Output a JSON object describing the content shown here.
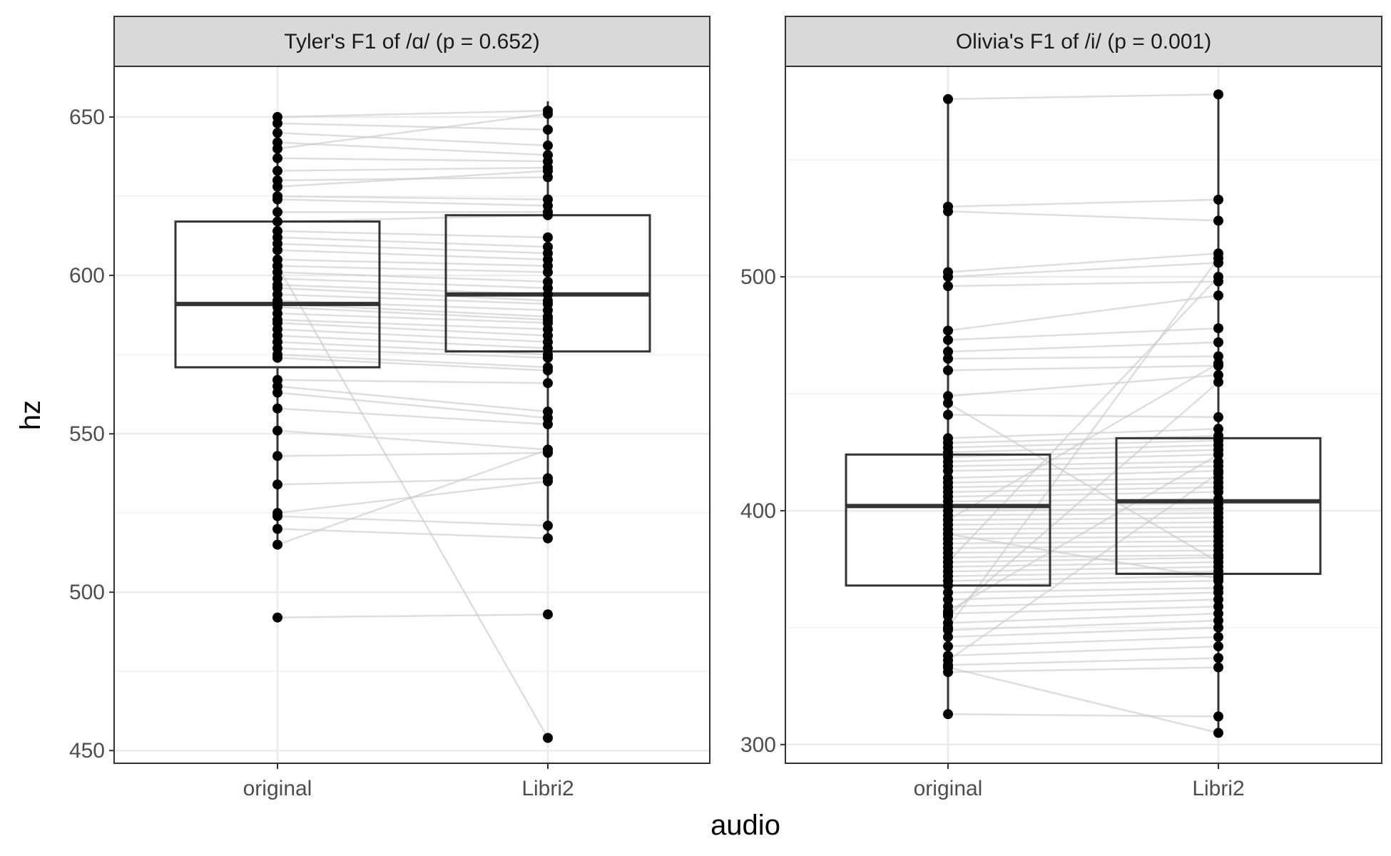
{
  "chart_data": [
    {
      "type": "boxplot-paired",
      "title": "Tyler's F1 of /ɑ/ (p = 0.652)",
      "xlabel": "audio",
      "ylabel": "hz",
      "categories": [
        "original",
        "Libri2"
      ],
      "ylim": [
        446,
        666
      ],
      "yticks": [
        450,
        500,
        550,
        600,
        650
      ],
      "grid": true,
      "boxes": [
        {
          "category": "original",
          "min": 515,
          "q1": 571,
          "median": 591,
          "q3": 617,
          "max": 650
        },
        {
          "category": "Libri2",
          "min": 517,
          "q1": 576,
          "median": 594,
          "q3": 619,
          "max": 655
        }
      ],
      "pairs": [
        [
          650,
          652
        ],
        [
          648,
          646
        ],
        [
          645,
          641
        ],
        [
          642,
          638
        ],
        [
          640,
          651
        ],
        [
          637,
          636
        ],
        [
          633,
          634
        ],
        [
          630,
          631
        ],
        [
          628,
          633
        ],
        [
          625,
          624
        ],
        [
          624,
          622
        ],
        [
          620,
          620
        ],
        [
          617,
          619
        ],
        [
          614,
          612
        ],
        [
          612,
          609
        ],
        [
          610,
          607
        ],
        [
          608,
          605
        ],
        [
          605,
          603
        ],
        [
          603,
          601
        ],
        [
          601,
          598
        ],
        [
          599,
          596
        ],
        [
          597,
          594
        ],
        [
          596,
          592
        ],
        [
          594,
          591
        ],
        [
          592,
          589
        ],
        [
          591,
          587
        ],
        [
          590,
          586
        ],
        [
          588,
          585
        ],
        [
          586,
          583
        ],
        [
          585,
          581
        ],
        [
          583,
          579
        ],
        [
          581,
          577
        ],
        [
          579,
          575
        ],
        [
          577,
          574
        ],
        [
          575,
          571
        ],
        [
          574,
          570
        ],
        [
          567,
          566
        ],
        [
          565,
          557
        ],
        [
          563,
          555
        ],
        [
          558,
          553
        ],
        [
          551,
          545
        ],
        [
          543,
          544
        ],
        [
          534,
          536
        ],
        [
          525,
          535
        ],
        [
          524,
          521
        ],
        [
          520,
          517
        ],
        [
          515,
          545
        ],
        [
          492,
          493
        ],
        [
          603,
          454
        ]
      ]
    },
    {
      "type": "boxplot-paired",
      "title": "Olivia's F1 of /i/ (p = 0.001)",
      "xlabel": "audio",
      "ylabel": "hz",
      "categories": [
        "original",
        "Libri2"
      ],
      "ylim": [
        292,
        590
      ],
      "yticks": [
        300,
        400,
        500
      ],
      "grid": true,
      "boxes": [
        {
          "category": "original",
          "min": 313,
          "q1": 368,
          "median": 402,
          "q3": 424,
          "max": 576
        },
        {
          "category": "Libri2",
          "min": 305,
          "q1": 373,
          "median": 404,
          "q3": 431,
          "max": 578
        }
      ],
      "pairs": [
        [
          576,
          578
        ],
        [
          530,
          533
        ],
        [
          528,
          524
        ],
        [
          502,
          510
        ],
        [
          500,
          506
        ],
        [
          496,
          498
        ],
        [
          477,
          492
        ],
        [
          473,
          478
        ],
        [
          468,
          472
        ],
        [
          465,
          466
        ],
        [
          460,
          462
        ],
        [
          449,
          458
        ],
        [
          441,
          440
        ],
        [
          431,
          435
        ],
        [
          429,
          432
        ],
        [
          427,
          430
        ],
        [
          425,
          428
        ],
        [
          423,
          426
        ],
        [
          421,
          424
        ],
        [
          419,
          421
        ],
        [
          417,
          419
        ],
        [
          414,
          417
        ],
        [
          412,
          414
        ],
        [
          410,
          412
        ],
        [
          408,
          410
        ],
        [
          406,
          408
        ],
        [
          404,
          405
        ],
        [
          402,
          403
        ],
        [
          400,
          401
        ],
        [
          398,
          399
        ],
        [
          396,
          397
        ],
        [
          394,
          395
        ],
        [
          392,
          393
        ],
        [
          390,
          391
        ],
        [
          388,
          389
        ],
        [
          386,
          387
        ],
        [
          384,
          385
        ],
        [
          382,
          383
        ],
        [
          380,
          381
        ],
        [
          378,
          380
        ],
        [
          376,
          378
        ],
        [
          374,
          376
        ],
        [
          372,
          374
        ],
        [
          370,
          372
        ],
        [
          368,
          370
        ],
        [
          365,
          367
        ],
        [
          362,
          365
        ],
        [
          359,
          362
        ],
        [
          356,
          359
        ],
        [
          352,
          356
        ],
        [
          349,
          353
        ],
        [
          346,
          350
        ],
        [
          342,
          346
        ],
        [
          338,
          342
        ],
        [
          334,
          337
        ],
        [
          331,
          333
        ],
        [
          313,
          312
        ],
        [
          333,
          305
        ],
        [
          350,
          508
        ],
        [
          357,
          424
        ],
        [
          378,
          500
        ],
        [
          396,
          463
        ],
        [
          336,
          416
        ],
        [
          355,
          455
        ],
        [
          390,
          371
        ],
        [
          446,
          378
        ]
      ]
    }
  ]
}
